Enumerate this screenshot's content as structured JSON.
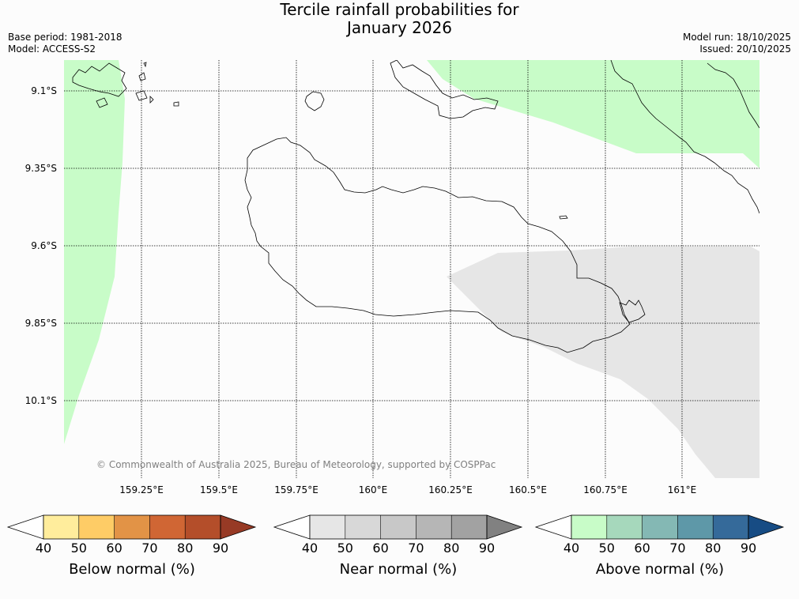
{
  "title": {
    "line1": "Tercile rainfall probabilities for",
    "line2": "January 2026"
  },
  "meta": {
    "base_period": "Base period: 1981-2018",
    "model": "Model: ACCESS-S2",
    "model_run": "Model run: 18/10/2025",
    "issued": "Issued: 20/10/2025"
  },
  "map": {
    "lat_labels": [
      "9.1°S",
      "9.35°S",
      "9.6°S",
      "9.85°S",
      "10.1°S"
    ],
    "lon_labels": [
      "159.25°E",
      "159.5°E",
      "159.75°E",
      "160°E",
      "160.25°E",
      "160.5°E",
      "160.75°E",
      "161°E"
    ],
    "copyright": "© Commonwealth of Australia 2025, Bureau of Meteorology, supported by COSPPac",
    "regions": [
      {
        "category": "above",
        "band": "50-60",
        "color": "#c8fcc8"
      },
      {
        "category": "near",
        "band": "50-60",
        "color": "#e6e6e6"
      }
    ]
  },
  "colorbars": [
    {
      "label": "Below normal (%)",
      "colors": [
        "#ffffff",
        "#ffed9c",
        "#fecc66",
        "#e29346",
        "#d06634",
        "#b44e2a",
        "#973a25"
      ],
      "ticks": [
        "40",
        "50",
        "60",
        "70",
        "80",
        "90"
      ]
    },
    {
      "label": "Near normal (%)",
      "colors": [
        "#ffffff",
        "#e6e6e6",
        "#d8d8d8",
        "#c8c8c8",
        "#b6b6b6",
        "#a2a2a2",
        "#818181"
      ],
      "ticks": [
        "40",
        "50",
        "60",
        "70",
        "80",
        "90"
      ]
    },
    {
      "label": "Above normal (%)",
      "colors": [
        "#ffffff",
        "#c8fcc8",
        "#a6d8bc",
        "#84b8b4",
        "#5e98a8",
        "#356a9a",
        "#174c84"
      ],
      "ticks": [
        "40",
        "50",
        "60",
        "70",
        "80",
        "90"
      ]
    }
  ]
}
